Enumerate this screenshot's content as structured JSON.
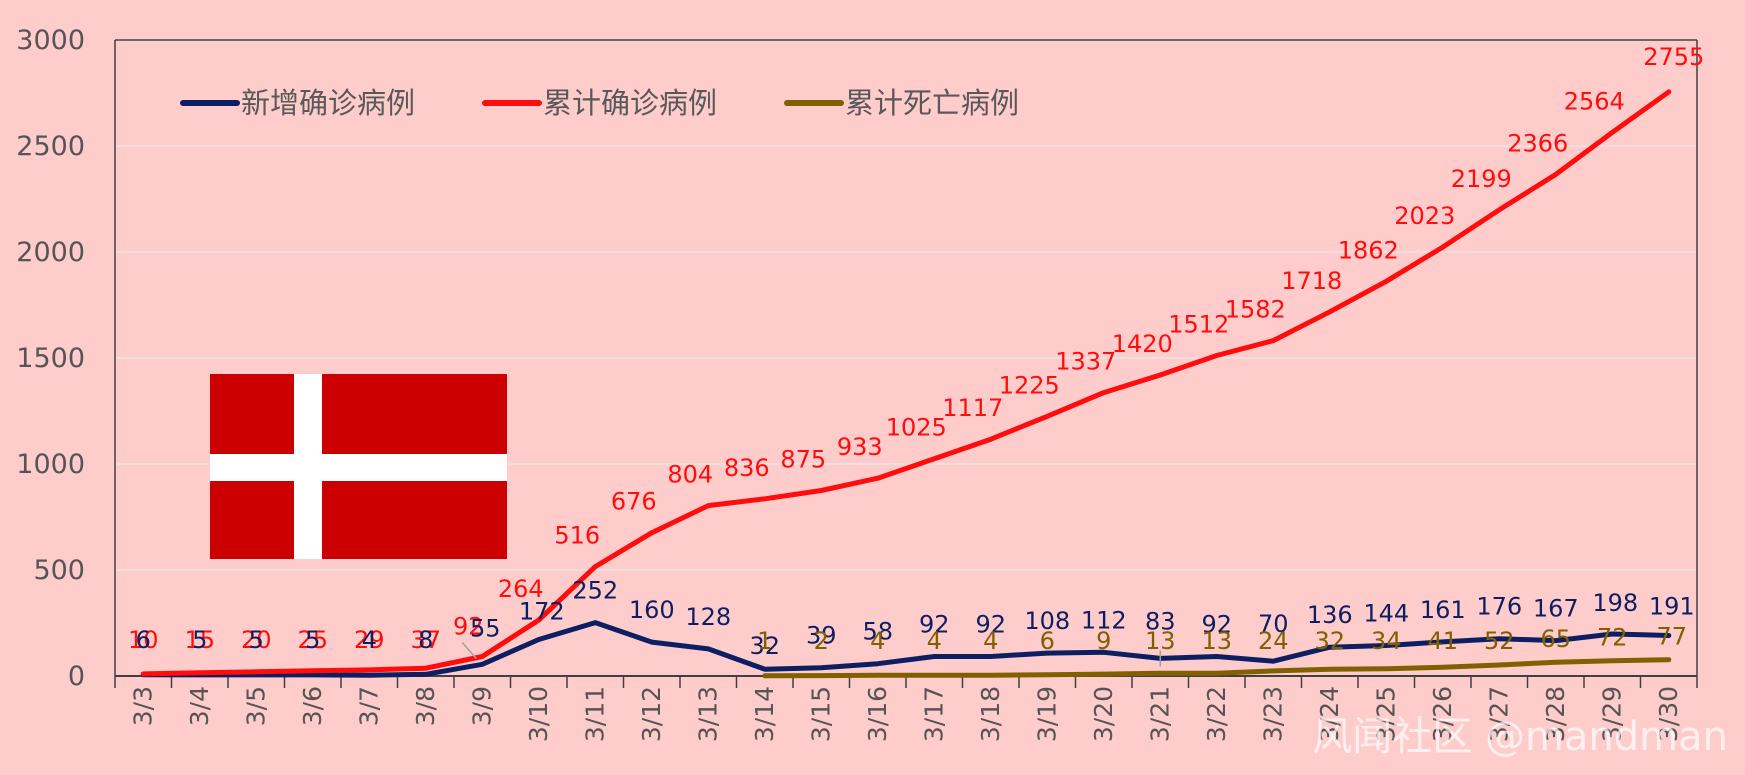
{
  "chart_data": {
    "type": "line",
    "title": "",
    "xlabel": "",
    "ylabel": "",
    "ylim": [
      0,
      3000
    ],
    "yticks": [
      0,
      500,
      1000,
      1500,
      2000,
      2500,
      3000
    ],
    "grid": true,
    "legend_position": "top-left",
    "categories": [
      "3/3",
      "3/4",
      "3/5",
      "3/6",
      "3/7",
      "3/8",
      "3/9",
      "3/10",
      "3/11",
      "3/12",
      "3/13",
      "3/14",
      "3/15",
      "3/16",
      "3/17",
      "3/18",
      "3/19",
      "3/20",
      "3/21",
      "3/22",
      "3/23",
      "3/24",
      "3/25",
      "3/26",
      "3/27",
      "3/28",
      "3/29",
      "3/30"
    ],
    "series": [
      {
        "name": "新增确诊病例",
        "color": "#0d1f63",
        "values": [
          6,
          5,
          5,
          5,
          4,
          8,
          55,
          172,
          252,
          160,
          128,
          32,
          39,
          58,
          92,
          92,
          108,
          112,
          83,
          92,
          70,
          136,
          144,
          161,
          176,
          167,
          198,
          191
        ]
      },
      {
        "name": "累计确诊病例",
        "color": "#ff0d0d",
        "values": [
          10,
          15,
          20,
          25,
          29,
          37,
          92,
          264,
          516,
          676,
          804,
          836,
          875,
          933,
          1025,
          1117,
          1225,
          1337,
          1420,
          1512,
          1582,
          1718,
          1862,
          2023,
          2199,
          2366,
          2564,
          2755
        ]
      },
      {
        "name": "累计死亡病例",
        "color": "#806000",
        "values": [
          null,
          null,
          null,
          null,
          null,
          null,
          null,
          null,
          null,
          null,
          null,
          1,
          2,
          4,
          4,
          4,
          6,
          9,
          13,
          13,
          24,
          32,
          34,
          41,
          52,
          65,
          72,
          77
        ]
      }
    ]
  },
  "flag": {
    "name": "Denmark",
    "field_color": "#cc0000",
    "cross_color": "#ffffff"
  },
  "watermark": "风闻社区 @mandman"
}
